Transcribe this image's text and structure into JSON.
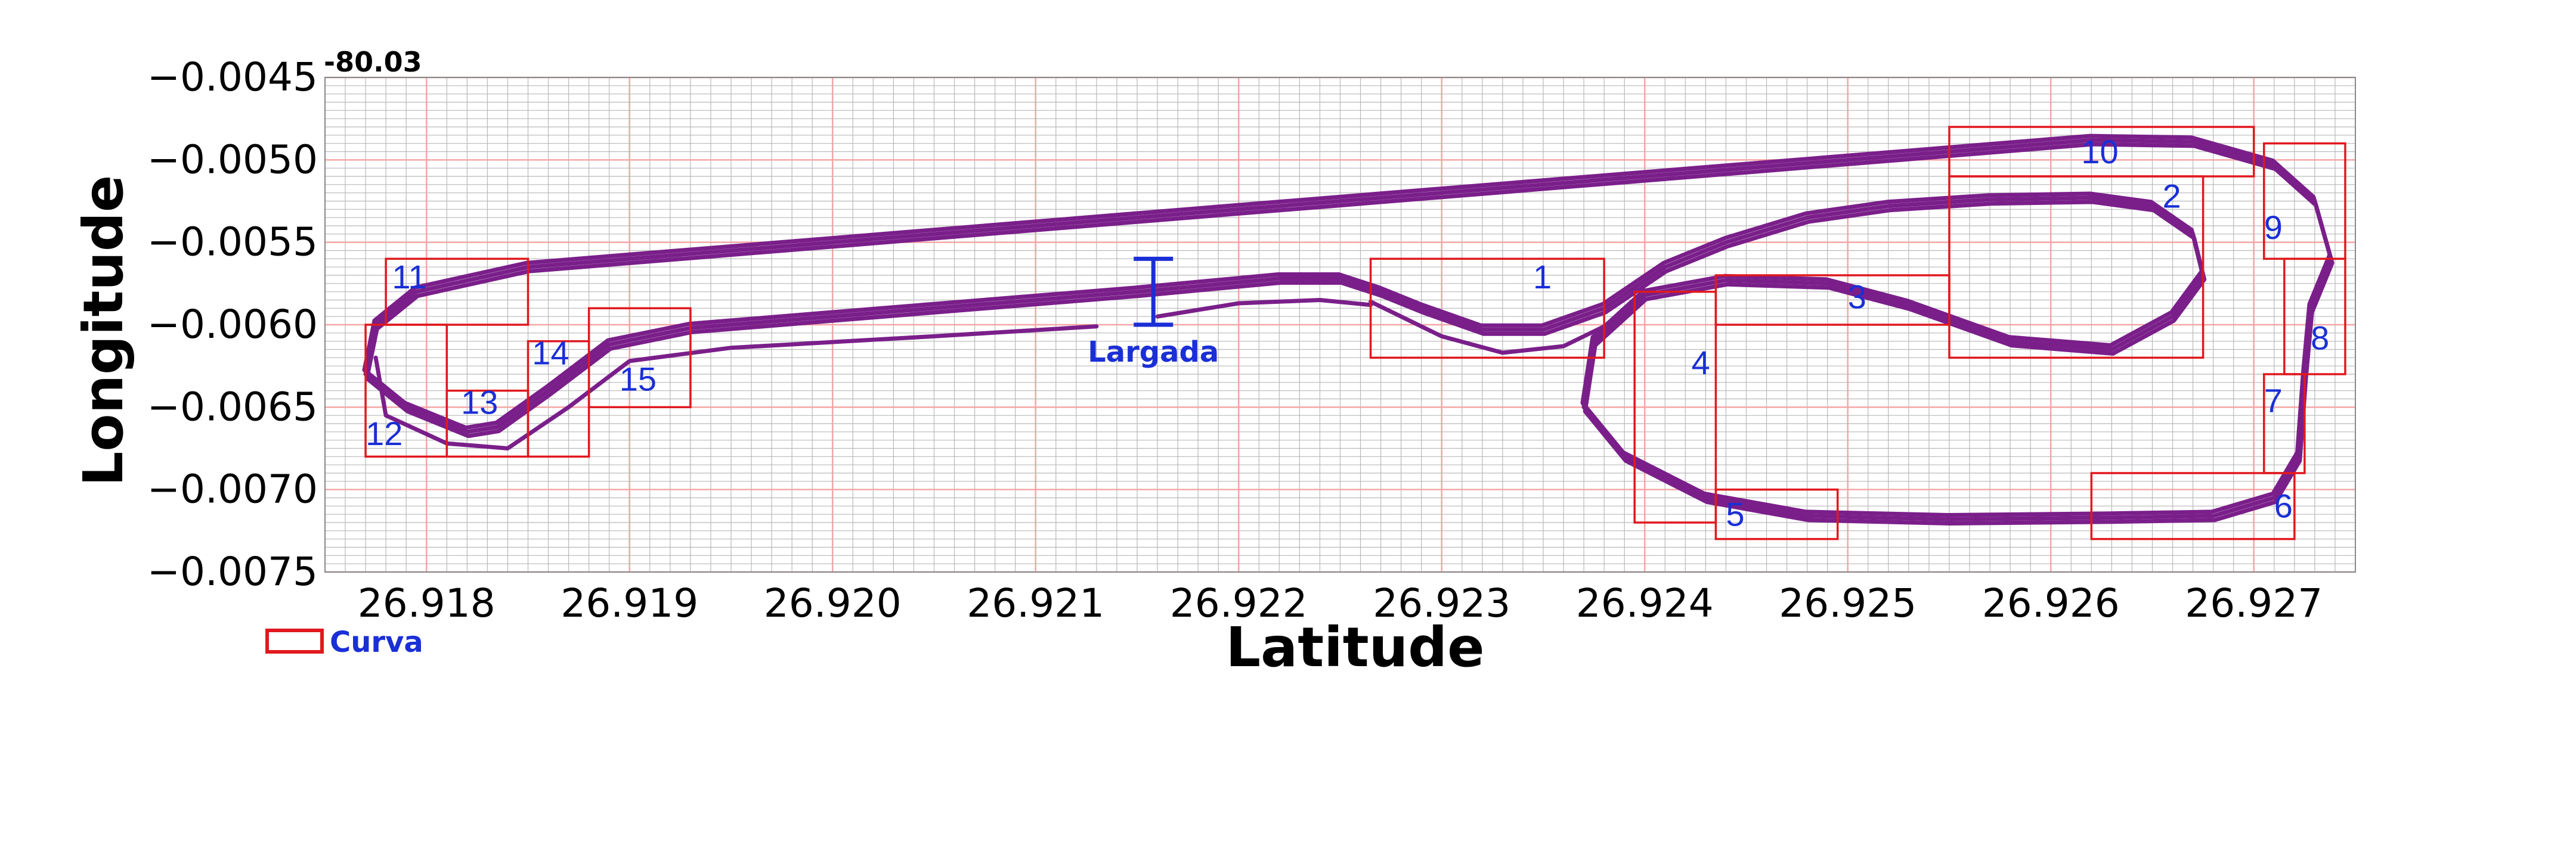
{
  "chart_data": {
    "type": "line",
    "title": "",
    "xlabel": "Latitude",
    "ylabel": "Longitude",
    "y_offset_label": "-80.03",
    "xlim": [
      26.9175,
      26.9275
    ],
    "ylim": [
      -0.0075,
      -0.0045
    ],
    "x_ticks": [
      {
        "value": 26.918,
        "label": "26.918"
      },
      {
        "value": 26.919,
        "label": "26.919"
      },
      {
        "value": 26.92,
        "label": "26.920"
      },
      {
        "value": 26.921,
        "label": "26.921"
      },
      {
        "value": 26.922,
        "label": "26.922"
      },
      {
        "value": 26.923,
        "label": "26.923"
      },
      {
        "value": 26.924,
        "label": "26.924"
      },
      {
        "value": 26.925,
        "label": "26.925"
      },
      {
        "value": 26.926,
        "label": "26.926"
      },
      {
        "value": 26.927,
        "label": "26.927"
      }
    ],
    "y_ticks": [
      {
        "value": -0.0045,
        "label": "−0.0045"
      },
      {
        "value": -0.005,
        "label": "−0.0050"
      },
      {
        "value": -0.0055,
        "label": "−0.0055"
      },
      {
        "value": -0.006,
        "label": "−0.0060"
      },
      {
        "value": -0.0065,
        "label": "−0.0065"
      },
      {
        "value": -0.007,
        "label": "−0.0070"
      },
      {
        "value": -0.0075,
        "label": "−0.0075"
      }
    ],
    "grid": true,
    "grid_major_color": "#f4a6a6",
    "grid_minor_color": "#b8b8b8",
    "track_color": "#7a1f8a",
    "box_color": "#e0191e",
    "label_color": "#1a2fd6",
    "series": [
      {
        "laps": 3,
        "points": [
          [
            26.9227,
            -0.0058
          ],
          [
            26.9229,
            -0.0059
          ],
          [
            26.9232,
            -0.00603
          ],
          [
            26.9235,
            -0.00603
          ],
          [
            26.9238,
            -0.0059
          ],
          [
            26.9241,
            -0.00565
          ],
          [
            26.9244,
            -0.0055
          ],
          [
            26.9248,
            -0.00535
          ],
          [
            26.9252,
            -0.00528
          ],
          [
            26.9257,
            -0.00524
          ],
          [
            26.9262,
            -0.00523
          ],
          [
            26.9265,
            -0.00528
          ],
          [
            26.9267,
            -0.00545
          ],
          [
            26.92675,
            -0.0057
          ],
          [
            26.9266,
            -0.00595
          ],
          [
            26.9263,
            -0.00615
          ],
          [
            26.9258,
            -0.0061
          ],
          [
            26.9253,
            -0.00588
          ],
          [
            26.9249,
            -0.00575
          ],
          [
            26.9244,
            -0.00573
          ],
          [
            26.924,
            -0.00582
          ],
          [
            26.92375,
            -0.0061
          ],
          [
            26.9237,
            -0.0065
          ],
          [
            26.9239,
            -0.0068
          ],
          [
            26.9243,
            -0.00705
          ],
          [
            26.9248,
            -0.00716
          ],
          [
            26.9255,
            -0.00718
          ],
          [
            26.9263,
            -0.00717
          ],
          [
            26.9268,
            -0.00716
          ],
          [
            26.9271,
            -0.00705
          ],
          [
            26.92722,
            -0.0068
          ],
          [
            26.92725,
            -0.0063
          ],
          [
            26.92728,
            -0.0059
          ],
          [
            26.92738,
            -0.0056
          ],
          [
            26.9273,
            -0.00525
          ],
          [
            26.9271,
            -0.00503
          ],
          [
            26.9267,
            -0.00489
          ],
          [
            26.9262,
            -0.00488
          ],
          [
            26.9255,
            -0.00495
          ],
          [
            26.924,
            -0.0051
          ],
          [
            26.922,
            -0.0053
          ],
          [
            26.92,
            -0.0055
          ],
          [
            26.9185,
            -0.00565
          ],
          [
            26.91795,
            -0.0058
          ],
          [
            26.91775,
            -0.006
          ],
          [
            26.9177,
            -0.0063
          ],
          [
            26.9179,
            -0.0065
          ],
          [
            26.9182,
            -0.00665
          ],
          [
            26.91835,
            -0.00662
          ],
          [
            26.9186,
            -0.0064
          ],
          [
            26.9189,
            -0.00612
          ],
          [
            26.9193,
            -0.00602
          ],
          [
            26.9205,
            -0.0059
          ],
          [
            26.9215,
            -0.0058
          ],
          [
            26.9222,
            -0.00572
          ],
          [
            26.9225,
            -0.00572
          ],
          [
            26.9227,
            -0.0058
          ]
        ]
      },
      {
        "laps": 1,
        "points": [
          [
            26.92265,
            -0.00586
          ],
          [
            26.923,
            -0.00607
          ],
          [
            26.9233,
            -0.00617
          ],
          [
            26.9236,
            -0.00613
          ],
          [
            26.9239,
            -0.00595
          ]
        ]
      },
      {
        "laps": 1,
        "points": [
          [
            26.91775,
            -0.0062
          ],
          [
            26.9178,
            -0.00655
          ],
          [
            26.9181,
            -0.00672
          ],
          [
            26.9184,
            -0.00675
          ],
          [
            26.9187,
            -0.0065
          ],
          [
            26.919,
            -0.00622
          ],
          [
            26.9195,
            -0.00614
          ],
          [
            26.9205,
            -0.00607
          ],
          [
            26.9213,
            -0.00601
          ]
        ]
      },
      {
        "laps": 1,
        "points": [
          [
            26.9216,
            -0.00595
          ],
          [
            26.922,
            -0.00587
          ],
          [
            26.9224,
            -0.00585
          ],
          [
            26.92265,
            -0.00588
          ]
        ]
      }
    ],
    "curves": [
      {
        "label": "1",
        "box": [
          26.92265,
          26.9238,
          -0.0056,
          -0.0062
        ],
        "label_pos": [
          26.92345,
          -0.00578
        ]
      },
      {
        "label": "2",
        "box": [
          26.9255,
          26.92675,
          -0.0051,
          -0.0062
        ],
        "label_pos": [
          26.92655,
          -0.00529
        ]
      },
      {
        "label": "3",
        "box": [
          26.92435,
          26.9255,
          -0.0057,
          -0.006
        ],
        "label_pos": [
          26.925,
          -0.0059
        ]
      },
      {
        "label": "4",
        "box": [
          26.92395,
          26.92435,
          -0.0058,
          -0.0072
        ],
        "label_pos": [
          26.92423,
          -0.0063
        ]
      },
      {
        "label": "5",
        "box": [
          26.92435,
          26.92495,
          -0.007,
          -0.0073
        ],
        "label_pos": [
          26.9244,
          -0.00722
        ]
      },
      {
        "label": "6",
        "box": [
          26.9262,
          26.9272,
          -0.0069,
          -0.0073
        ],
        "label_pos": [
          26.9271,
          -0.00717
        ]
      },
      {
        "label": "7",
        "box": [
          26.92705,
          26.92725,
          -0.0063,
          -0.0069
        ],
        "label_pos": [
          26.92705,
          -0.00653
        ]
      },
      {
        "label": "8",
        "box": [
          26.92715,
          26.92745,
          -0.0056,
          -0.0063
        ],
        "label_pos": [
          26.92728,
          -0.00615
        ]
      },
      {
        "label": "9",
        "box": [
          26.92705,
          26.92745,
          -0.0049,
          -0.0056
        ],
        "label_pos": [
          26.92705,
          -0.00548
        ]
      },
      {
        "label": "10",
        "box": [
          26.9255,
          26.927,
          -0.0048,
          -0.0051
        ],
        "label_pos": [
          26.92615,
          -0.00502
        ]
      },
      {
        "label": "11",
        "box": [
          26.9178,
          26.9185,
          -0.0056,
          -0.006
        ],
        "label_pos": [
          26.91783,
          -0.00578
        ]
      },
      {
        "label": "12",
        "box": [
          26.9177,
          26.9181,
          -0.006,
          -0.0068
        ],
        "label_pos": [
          26.9177,
          -0.00673
        ]
      },
      {
        "label": "13",
        "box": [
          26.9181,
          26.9185,
          -0.0064,
          -0.0068
        ],
        "label_pos": [
          26.91817,
          -0.00654
        ]
      },
      {
        "label": "14",
        "box": [
          26.9185,
          26.9188,
          -0.0061,
          -0.0068
        ],
        "label_pos": [
          26.91852,
          -0.00624
        ]
      },
      {
        "label": "15",
        "box": [
          26.9188,
          26.9193,
          -0.0059,
          -0.0065
        ],
        "label_pos": [
          26.91895,
          -0.0064
        ]
      }
    ],
    "start_marker": {
      "label": "Largada",
      "x": 26.92158,
      "y_top": -0.0056,
      "y_bottom": -0.006
    },
    "legend": {
      "label": "Curva",
      "placement": "bottom-left"
    }
  }
}
